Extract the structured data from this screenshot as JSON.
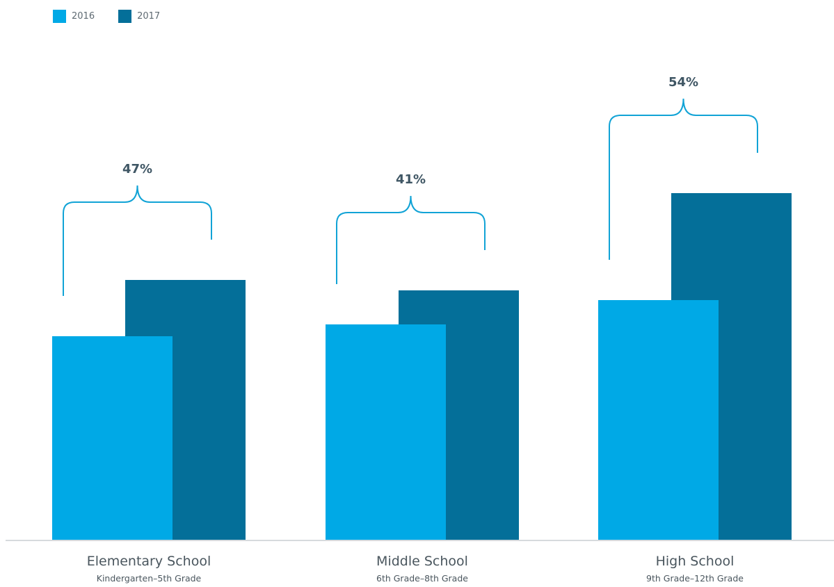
{
  "legend": [
    {
      "label": "2016",
      "color": "#00A9E6"
    },
    {
      "label": "2017",
      "color": "#046F99"
    }
  ],
  "colors": {
    "bracket": "#11A3D6",
    "axis": "#D6DADD"
  },
  "chart_data": {
    "type": "bar",
    "categories": [
      "Elementary School",
      "Middle School",
      "High School"
    ],
    "subtitles": [
      "Kindergarten–5th Grade",
      "6th Grade–8th Grade",
      "9th Grade–12th Grade"
    ],
    "series": [
      {
        "name": "2016",
        "values": [
          29.4,
          31.1,
          34.6
        ]
      },
      {
        "name": "2017",
        "values": [
          37.5,
          36.0,
          50.0
        ]
      }
    ],
    "annotations": [
      "47%",
      "41%",
      "54%"
    ],
    "ylim": [
      0,
      60
    ],
    "grid": false,
    "legend_position": "top-left"
  }
}
